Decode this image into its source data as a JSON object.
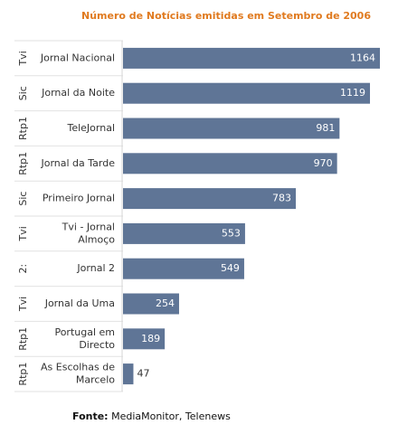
{
  "chart_data": {
    "type": "bar",
    "orientation": "horizontal",
    "title": "Número de Notícias emitidas em Setembro de 2006",
    "groups": [
      "Tvi",
      "Sic",
      "Rtp1",
      "Rtp1",
      "Sic",
      "Tvi",
      "2:",
      "Tvi",
      "Rtp1",
      "Rtp1"
    ],
    "categories": [
      [
        "Jornal Nacional"
      ],
      [
        "Jornal da Noite"
      ],
      [
        "TeleJornal"
      ],
      [
        "Jornal da Tarde"
      ],
      [
        "Primeiro Jornal"
      ],
      [
        "Tvi - Jornal",
        "Almoço"
      ],
      [
        "Jornal 2"
      ],
      [
        "Jornal da Uma"
      ],
      [
        "Portugal em",
        "Directo"
      ],
      [
        "As Escolhas de",
        "Marcelo"
      ]
    ],
    "values": [
      1164,
      1119,
      981,
      970,
      783,
      553,
      549,
      254,
      189,
      47
    ],
    "xlim": [
      0,
      1164
    ],
    "grid": false,
    "bar_color": "#5f7596"
  },
  "source": {
    "label": "Fonte:",
    "text": " MediaMonitor, Telenews"
  }
}
